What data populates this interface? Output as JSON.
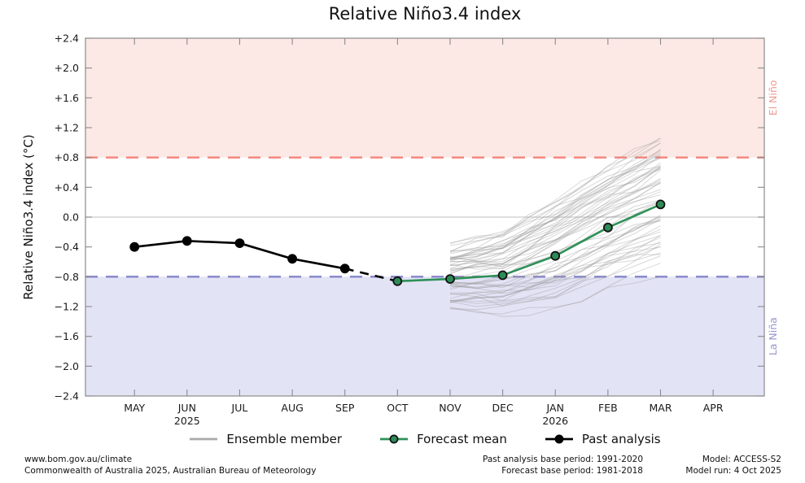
{
  "title": "Relative Niño3.4 index",
  "chart_data": {
    "type": "line",
    "title": "Relative Niño3.4 index",
    "ylabel": "Relative Niño3.4 index (°C)",
    "ylim": [
      -2.4,
      2.4
    ],
    "grid": "zero-line-only",
    "yticks": [
      {
        "value": 2.4,
        "label": "+2.4"
      },
      {
        "value": 2.0,
        "label": "+2.0"
      },
      {
        "value": 1.6,
        "label": "+1.6"
      },
      {
        "value": 1.2,
        "label": "+1.2"
      },
      {
        "value": 0.8,
        "label": "+0.8"
      },
      {
        "value": 0.4,
        "label": "+0.4"
      },
      {
        "value": 0.0,
        "label": "0.0"
      },
      {
        "value": -0.4,
        "label": "−0.4"
      },
      {
        "value": -0.8,
        "label": "−0.8"
      },
      {
        "value": -1.2,
        "label": "−1.2"
      },
      {
        "value": -1.6,
        "label": "−1.6"
      },
      {
        "value": -2.0,
        "label": "−2.0"
      },
      {
        "value": -2.4,
        "label": "−2.4"
      }
    ],
    "months": [
      {
        "label": "MAY"
      },
      {
        "label": "JUN",
        "year": "2025"
      },
      {
        "label": "JUL"
      },
      {
        "label": "AUG"
      },
      {
        "label": "SEP"
      },
      {
        "label": "OCT"
      },
      {
        "label": "NOV"
      },
      {
        "label": "DEC"
      },
      {
        "label": "JAN",
        "year": "2026"
      },
      {
        "label": "FEB"
      },
      {
        "label": "MAR"
      },
      {
        "label": "APR"
      }
    ],
    "thresholds": {
      "el_nino": 0.8,
      "la_nina": -0.8
    },
    "region_labels": {
      "el_nino": "El Niño",
      "la_nina": "La Niña"
    },
    "series": [
      {
        "name": "Past analysis",
        "style": "solid-markers",
        "color": "#000000",
        "marker_fill": "#000000",
        "marker_edge": "#000000",
        "x": [
          "MAY",
          "JUN",
          "JUL",
          "AUG",
          "SEP"
        ],
        "values": [
          -0.4,
          -0.32,
          -0.35,
          -0.56,
          -0.69
        ]
      },
      {
        "name": "Analysis to forecast connector",
        "style": "dashed",
        "color": "#000000",
        "x": [
          "SEP",
          "OCT"
        ],
        "values": [
          -0.69,
          -0.86
        ]
      },
      {
        "name": "Forecast mean",
        "style": "solid-markers",
        "color": "#2e9158",
        "marker_fill": "#2e8b57",
        "marker_edge": "#111111",
        "x": [
          "OCT",
          "NOV",
          "DEC",
          "JAN",
          "FEB",
          "MAR"
        ],
        "values": [
          -0.86,
          -0.83,
          -0.78,
          -0.52,
          -0.14,
          0.17
        ]
      }
    ],
    "ensemble": {
      "name": "Ensemble member",
      "color": "#999999",
      "opacity": 0.38,
      "count": 60,
      "seed": 20251004,
      "x": [
        "NOV",
        "DEC",
        "JAN",
        "FEB",
        "MAR"
      ],
      "mean": [
        -0.83,
        -0.78,
        -0.52,
        -0.14,
        0.17
      ],
      "spread": [
        0.42,
        0.55,
        0.68,
        0.8,
        0.88
      ],
      "value_clamp": [
        -1.62,
        1.06
      ]
    },
    "colors": {
      "el_nino_band": "#fce9e6",
      "la_nina_band": "#e3e3f6",
      "el_nino_line": "#f4837a",
      "la_nina_line": "#8585c9",
      "el_nino_text": "#ee9a92",
      "la_nina_text": "#9595cd",
      "zero_line": "#cccccc",
      "spine": "#8a8a8a"
    }
  },
  "legend": {
    "items": [
      {
        "label": "Ensemble member",
        "swatch": "ensemble"
      },
      {
        "label": "Forecast mean",
        "swatch": "forecast"
      },
      {
        "label": "Past analysis",
        "swatch": "past"
      }
    ]
  },
  "footer": {
    "site": "www.bom.gov.au/climate",
    "copyright": "Commonwealth of Australia 2025, Australian Bureau of Meteorology",
    "past_base": "Past analysis base period: 1991-2020",
    "forecast_base": "Forecast base period: 1981-2018",
    "model": "Model: ACCESS-S2",
    "model_run": "Model run: 4 Oct 2025"
  }
}
